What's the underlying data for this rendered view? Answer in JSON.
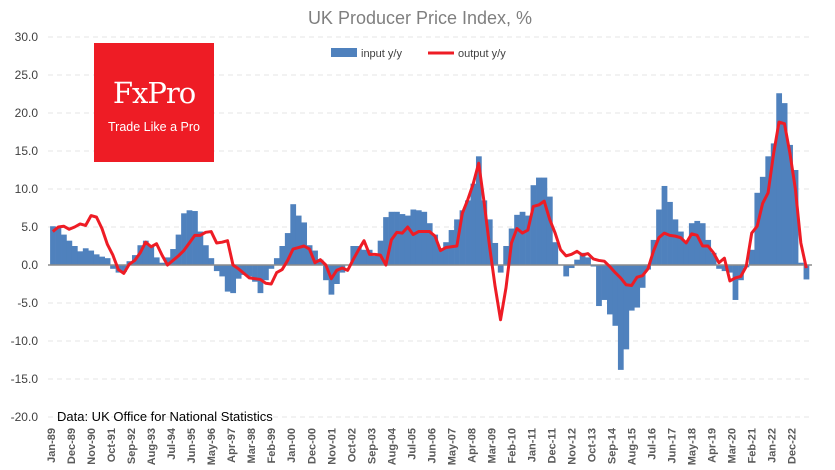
{
  "chart_data": {
    "type": "bar+line",
    "title": "UK Producer Price Index, %",
    "source_note": "Data: UK Office for National Statistics",
    "ylim": [
      -20,
      30
    ],
    "yticks": [
      "30.0",
      "25.0",
      "20.0",
      "15.0",
      "10.0",
      "5.0",
      "0.0",
      "-5.0",
      "-10.0",
      "-15.0",
      "-20.0"
    ],
    "ytick_values": [
      30,
      25,
      20,
      15,
      10,
      5,
      0,
      -5,
      -10,
      -15,
      -20
    ],
    "xticks": [
      "Jan-89",
      "Dec-89",
      "Nov-90",
      "Oct-91",
      "Sep-92",
      "Aug-93",
      "Jul-94",
      "Jun-95",
      "May-96",
      "Apr-97",
      "Mar-98",
      "Feb-99",
      "Jan-00",
      "Dec-00",
      "Nov-01",
      "Oct-02",
      "Sep-03",
      "Aug-04",
      "Jul-05",
      "Jun-06",
      "May-07",
      "Apr-08",
      "Mar-09",
      "Feb-10",
      "Jan-11",
      "Dec-11",
      "Nov-12",
      "Oct-13",
      "Sep-14",
      "Aug-15",
      "Jul-16",
      "Jun-17",
      "May-18",
      "Apr-19",
      "Mar-20",
      "Feb-21",
      "Jan-22",
      "Dec-22"
    ],
    "grid": true,
    "legend": "top-center",
    "x": [
      "Jan-89",
      "Apr-89",
      "Jul-89",
      "Oct-89",
      "Jan-90",
      "Apr-90",
      "Jul-90",
      "Oct-90",
      "Jan-91",
      "Apr-91",
      "Jul-91",
      "Oct-91",
      "Jan-92",
      "Apr-92",
      "Jul-92",
      "Oct-92",
      "Jan-93",
      "Apr-93",
      "Jul-93",
      "Oct-93",
      "Jan-94",
      "Apr-94",
      "Jul-94",
      "Oct-94",
      "Jan-95",
      "Apr-95",
      "Jul-95",
      "Oct-95",
      "Jan-96",
      "Apr-96",
      "Jul-96",
      "Oct-96",
      "Jan-97",
      "Apr-97",
      "Jul-97",
      "Oct-97",
      "Jan-98",
      "Apr-98",
      "Jul-98",
      "Oct-98",
      "Jan-99",
      "Apr-99",
      "Jul-99",
      "Oct-99",
      "Jan-00",
      "Apr-00",
      "Jul-00",
      "Oct-00",
      "Jan-01",
      "Apr-01",
      "Jul-01",
      "Oct-01",
      "Jan-02",
      "Apr-02",
      "Jul-02",
      "Oct-02",
      "Jan-03",
      "Apr-03",
      "Jul-03",
      "Oct-03",
      "Jan-04",
      "Apr-04",
      "Jul-04",
      "Oct-04",
      "Jan-05",
      "Apr-05",
      "Jul-05",
      "Oct-05",
      "Jan-06",
      "Apr-06",
      "Jul-06",
      "Oct-06",
      "Jan-07",
      "Apr-07",
      "Jul-07",
      "Oct-07",
      "Jan-08",
      "Apr-08",
      "Jul-08",
      "Oct-08",
      "Jan-09",
      "Apr-09",
      "Jul-09",
      "Oct-09",
      "Jan-10",
      "Apr-10",
      "Jul-10",
      "Oct-10",
      "Jan-11",
      "Apr-11",
      "Jul-11",
      "Oct-11",
      "Jan-12",
      "Apr-12",
      "Jul-12",
      "Oct-12",
      "Jan-13",
      "Apr-13",
      "Jul-13",
      "Oct-13",
      "Jan-14",
      "Apr-14",
      "Jul-14",
      "Oct-14",
      "Jan-15",
      "Apr-15",
      "Jul-15",
      "Oct-15",
      "Jan-16",
      "Apr-16",
      "Jul-16",
      "Oct-16",
      "Jan-17",
      "Apr-17",
      "Jul-17",
      "Oct-17",
      "Jan-18",
      "Apr-18",
      "Jul-18",
      "Oct-18",
      "Jan-19",
      "Apr-19",
      "Jul-19",
      "Oct-19",
      "Jan-20",
      "Apr-20",
      "Jul-20",
      "Oct-20",
      "Jan-21",
      "Apr-21",
      "Jul-21",
      "Oct-21",
      "Jan-22",
      "Apr-22",
      "Jul-22",
      "Oct-22",
      "Jan-23",
      "Apr-23",
      "Jul-23"
    ],
    "series": [
      {
        "name": "input y/y",
        "type": "bar",
        "color": "#4f81bd",
        "values": [
          5.1,
          5.0,
          4.0,
          3.2,
          2.5,
          1.8,
          2.2,
          1.9,
          1.4,
          1.1,
          0.9,
          -0.5,
          -1.0,
          -0.9,
          0.5,
          1.3,
          2.6,
          3.2,
          2.5,
          1.0,
          0.3,
          1.0,
          2.1,
          4.0,
          6.8,
          7.2,
          7.1,
          4.4,
          2.6,
          0.9,
          -0.8,
          -1.5,
          -3.5,
          -3.7,
          -1.8,
          -1.3,
          -1.5,
          -2.2,
          -3.7,
          -2.0,
          -0.5,
          0.9,
          2.5,
          4.2,
          8.0,
          6.5,
          5.6,
          2.6,
          1.9,
          0.7,
          -2.0,
          -3.9,
          -2.5,
          -1.0,
          0.0,
          2.5,
          2.5,
          2.0,
          2.0,
          1.2,
          3.2,
          6.3,
          7.0,
          7.0,
          6.7,
          6.5,
          7.3,
          7.2,
          7.0,
          5.5,
          4.0,
          2.2,
          3.0,
          4.6,
          6.0,
          7.2,
          8.5,
          10.7,
          14.3,
          8.5,
          6.0,
          2.9,
          -1.0,
          2.5,
          4.8,
          6.6,
          7.0,
          6.5,
          10.5,
          11.5,
          11.5,
          9.0,
          3.0,
          0.0,
          -1.5,
          -0.4,
          0.7,
          1.6,
          1.0,
          -0.2,
          -5.4,
          -4.6,
          -6.5,
          -8.0,
          -13.8,
          -11.1,
          -6.0,
          -5.6,
          -3.0,
          -0.6,
          3.3,
          7.3,
          10.4,
          8.3,
          6.0,
          4.4,
          3.2,
          5.5,
          5.8,
          5.5,
          3.3,
          1.6,
          -0.5,
          -0.8,
          -1.0,
          -4.6,
          -2.0,
          -0.3,
          2.0,
          9.5,
          11.6,
          14.3,
          16.0,
          22.6,
          21.3,
          15.8,
          12.5,
          0.3,
          -1.9
        ]
      },
      {
        "name": "output y/y",
        "type": "line",
        "color": "#ee1c25",
        "values": [
          4.4,
          5.0,
          5.1,
          4.7,
          5.0,
          5.4,
          5.2,
          6.5,
          6.3,
          4.8,
          2.7,
          1.3,
          -0.6,
          -1.1,
          0.1,
          0.6,
          1.6,
          3.0,
          2.4,
          2.8,
          1.3,
          0.0,
          0.6,
          1.2,
          1.9,
          2.9,
          3.9,
          3.9,
          4.3,
          4.4,
          2.9,
          3.0,
          3.2,
          0.0,
          -0.5,
          -1.1,
          -1.7,
          -1.8,
          -1.9,
          -2.4,
          -2.5,
          -1.0,
          -0.6,
          0.6,
          2.1,
          2.3,
          2.5,
          2.1,
          0.3,
          0.7,
          0.0,
          -1.8,
          -0.7,
          -0.4,
          -0.7,
          0.7,
          2.0,
          3.2,
          1.4,
          1.4,
          1.3,
          0.0,
          3.3,
          4.3,
          4.2,
          5.0,
          4.0,
          4.4,
          4.4,
          4.4,
          3.8,
          1.9,
          2.3,
          2.4,
          2.5,
          6.8,
          8.6,
          10.7,
          13.4,
          8.2,
          2.4,
          -2.8,
          -7.2,
          -3.0,
          2.9,
          4.8,
          4.2,
          4.6,
          7.7,
          7.9,
          8.4,
          6.0,
          4.2,
          2.0,
          1.2,
          1.4,
          1.8,
          1.3,
          1.5,
          0.8,
          0.6,
          0.5,
          -0.2,
          -1.0,
          -1.7,
          -2.6,
          -2.7,
          -1.6,
          -1.4,
          -0.5,
          1.8,
          3.6,
          4.2,
          3.9,
          3.8,
          3.6,
          2.9,
          4.1,
          3.9,
          2.5,
          2.5,
          1.6,
          0.3,
          0.9,
          -2.1,
          -1.7,
          -1.5,
          -0.2,
          4.2,
          5.1,
          8.1,
          9.5,
          14.6,
          18.8,
          18.6,
          14.7,
          10.0,
          2.9,
          -0.4
        ]
      }
    ]
  },
  "logo": {
    "brand": "FxPro",
    "tagline": "Trade Like a Pro"
  }
}
